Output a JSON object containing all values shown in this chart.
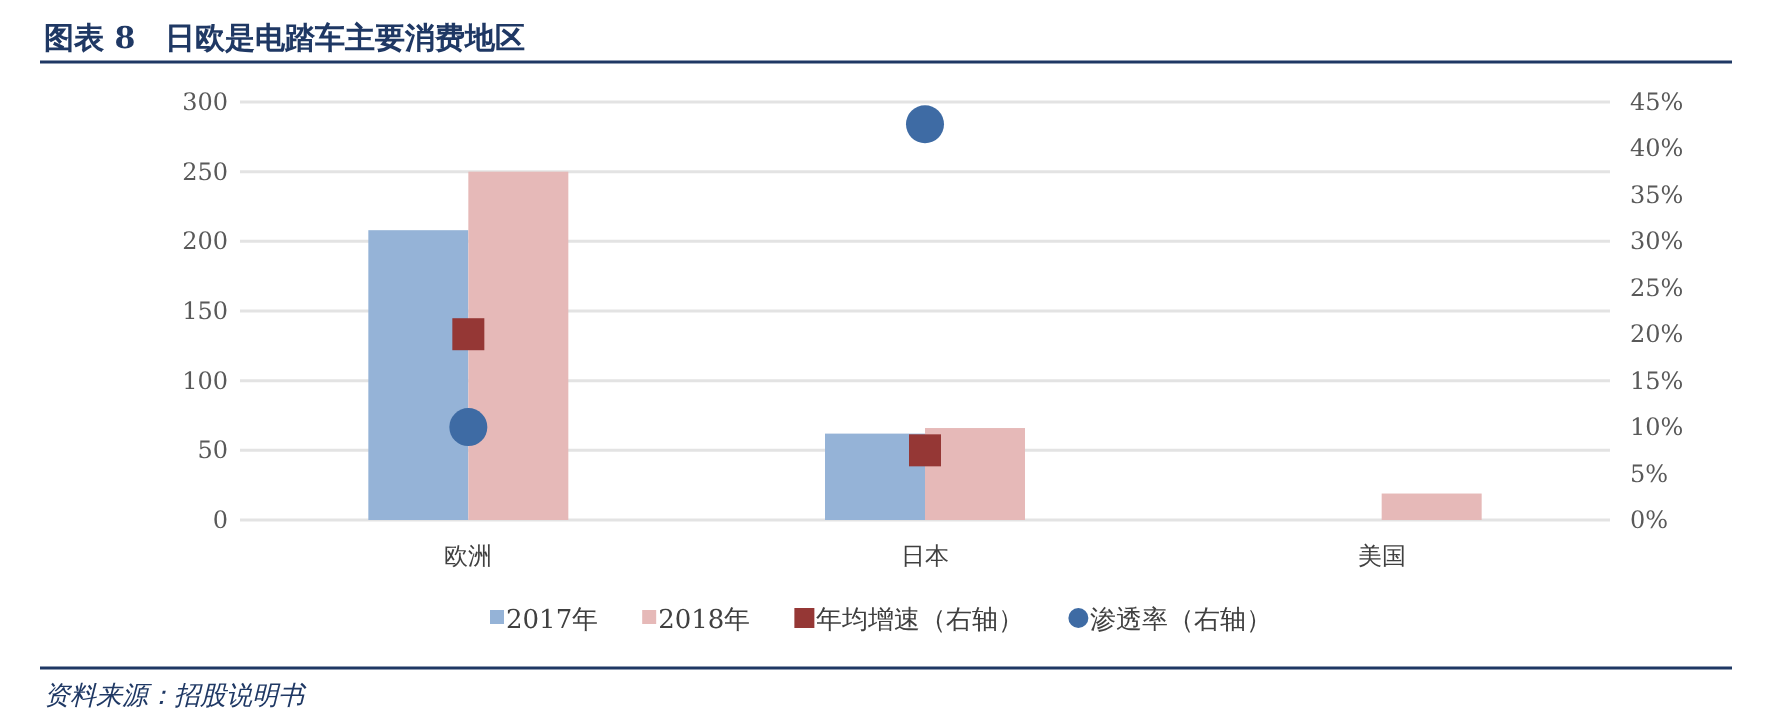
{
  "chart_data": {
    "type": "bar",
    "title": "图表 8　日欧是电踏车主要消费地区",
    "categories": [
      "欧洲",
      "日本",
      "美国"
    ],
    "series": [
      {
        "name": "2017年",
        "color": "#95b3d7",
        "values": [
          208,
          62,
          null
        ]
      },
      {
        "name": "2018年",
        "color": "#e6b9b8",
        "values": [
          250,
          66,
          19
        ]
      },
      {
        "name": "年均增速（右轴）",
        "type": "scatter",
        "axis": "y2",
        "marker": "square",
        "color": "#953735",
        "values": [
          20,
          7.5,
          null
        ]
      },
      {
        "name": "渗透率（右轴）",
        "type": "scatter",
        "axis": "y2",
        "marker": "circle",
        "color": "#3e6ba4",
        "values": [
          10,
          42.6,
          null
        ]
      }
    ],
    "ylim": [
      0,
      300
    ],
    "yticks": [
      0,
      50,
      100,
      150,
      200,
      250,
      300
    ],
    "y2lim": [
      0,
      45
    ],
    "y2ticks": [
      {
        "value": 0,
        "label": "0%"
      },
      {
        "value": 5,
        "label": "5%"
      },
      {
        "value": 10,
        "label": "10%"
      },
      {
        "value": 15,
        "label": "15%"
      },
      {
        "value": 20,
        "label": "20%"
      },
      {
        "value": 25,
        "label": "25%"
      },
      {
        "value": 30,
        "label": "30%"
      },
      {
        "value": 35,
        "label": "35%"
      },
      {
        "value": 40,
        "label": "40%"
      },
      {
        "value": 45,
        "label": "45%"
      }
    ],
    "grid": "y",
    "legend": "bottom",
    "annotations": [
      "资料来源：招股说明书"
    ]
  }
}
